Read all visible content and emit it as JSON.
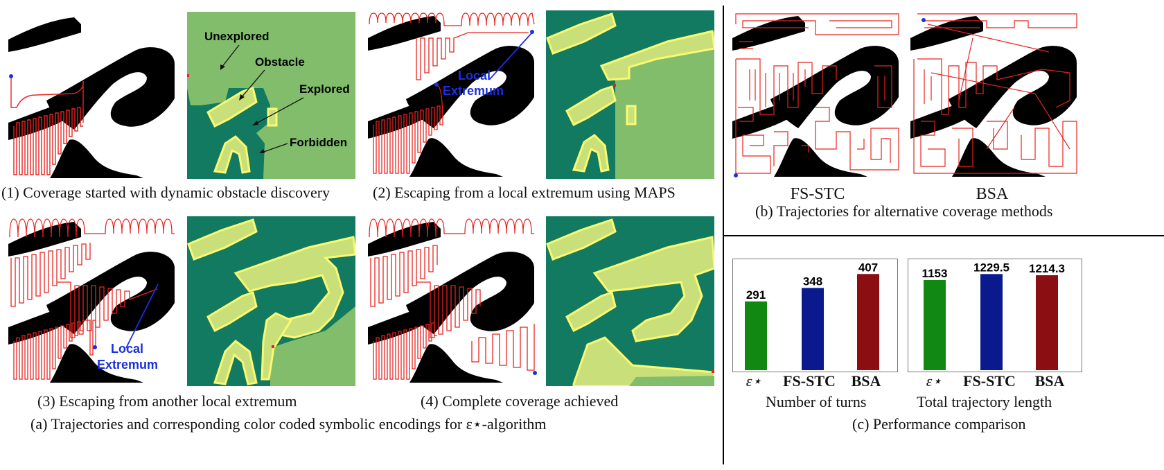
{
  "panel_a": {
    "sub1": "(1) Coverage started with dynamic obstacle discovery",
    "sub2": "(2) Escaping from a local extremum using MAPS",
    "sub3": "(3) Escaping from another local extremum",
    "sub4": "(4) Complete coverage achieved",
    "caption": "(a) Trajectories and corresponding color coded symbolic encodings for ε⋆-algorithm",
    "annotations": {
      "unexplored": "Unexplored",
      "obstacle": "Obstacle",
      "explored": "Explored",
      "forbidden": "Forbidden",
      "local": "Local",
      "extremum": "Extremum"
    }
  },
  "panel_b": {
    "method1": "FS-STC",
    "method2": "BSA",
    "caption": "(b) Trajectories for alternative coverage methods"
  },
  "panel_c": {
    "caption": "(c) Performance comparison"
  },
  "colors": {
    "trajectory": "#e8231f",
    "obstacle": "#000000",
    "unexplored": "#82bd6b",
    "explored": "#137a62",
    "forbidden": "#c9df7a",
    "boundary": "#fafa70",
    "robot": "#1b2ee8",
    "robot_red": "#e4202a"
  },
  "chart_data": [
    {
      "type": "bar",
      "categories": [
        "ε⋆",
        "FS-STC",
        "BSA"
      ],
      "values": [
        291,
        348,
        407
      ],
      "value_labels": [
        "291",
        "348",
        "407"
      ],
      "colors": [
        "#118811",
        "#0a1a8e",
        "#8b0f12"
      ],
      "xlabel": "Number of turns",
      "ylim": [
        0,
        440
      ]
    },
    {
      "type": "bar",
      "categories": [
        "ε⋆",
        "FS-STC",
        "BSA"
      ],
      "values": [
        1153,
        1229.5,
        1214.3
      ],
      "value_labels": [
        "1153",
        "1229.5",
        "1214.3"
      ],
      "colors": [
        "#118811",
        "#0a1a8e",
        "#8b0f12"
      ],
      "xlabel": "Total trajectory length",
      "ylim": [
        0,
        1330
      ]
    }
  ]
}
